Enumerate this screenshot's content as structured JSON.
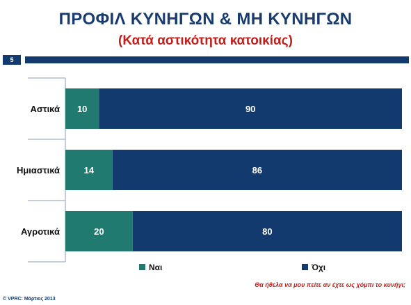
{
  "header": {
    "title": "ΠΡΟΦΙΛ ΚΥΝΗΓΩΝ & ΜΗ ΚΥΝΗΓΩΝ",
    "subtitle": "(Κατά αστικότητα κατοικίας)",
    "page_number": "5"
  },
  "footer": {
    "question": "Θα ήθελα να μου πείτε αν έχτε ως χόμπι το κυνήγι;",
    "copyright": "© VPRC: Μάρτιος 2013"
  },
  "colors": {
    "yes": "#217a70",
    "no": "#123a6e",
    "title": "#1a3b6e",
    "accent": "#c0201c"
  },
  "chart_data": {
    "type": "bar",
    "orientation": "horizontal",
    "stacked": true,
    "categories": [
      "Αστικά",
      "Ημιαστικά",
      "Αγροτικά"
    ],
    "series": [
      {
        "name": "Ναι",
        "values": [
          10,
          14,
          20
        ]
      },
      {
        "name": "Όχι",
        "values": [
          90,
          86,
          80
        ]
      }
    ],
    "xlim": [
      0,
      100
    ],
    "legend": "bottom",
    "data_labels": true,
    "grid": false
  }
}
